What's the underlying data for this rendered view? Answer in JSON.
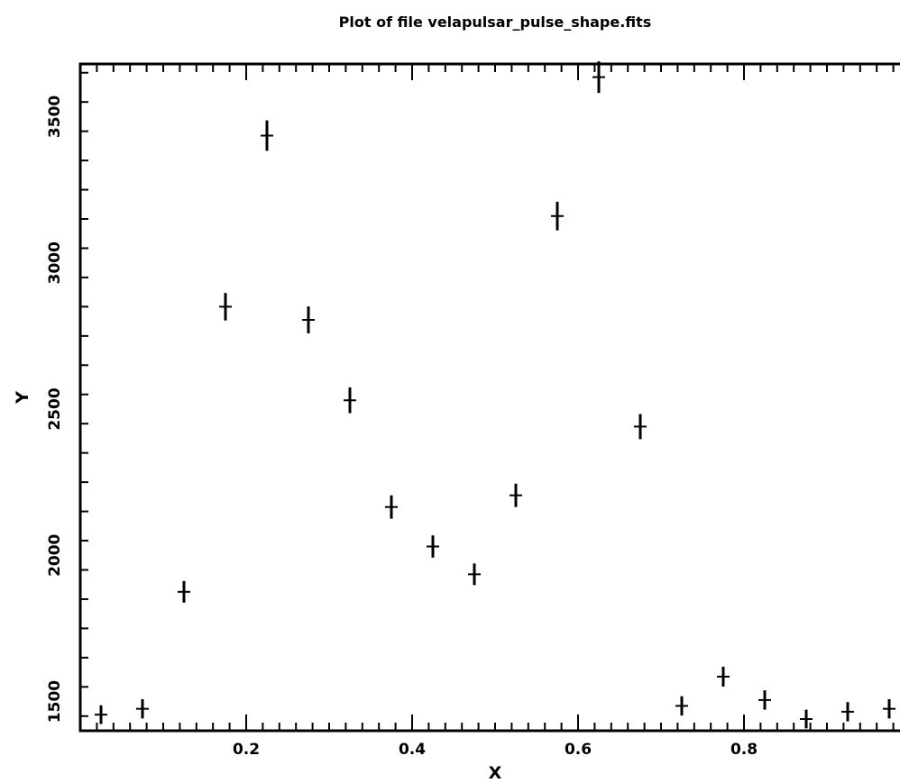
{
  "chart_data": {
    "type": "scatter",
    "title": "Plot of file velapulsar_pulse_shape.fits",
    "xlabel": "X",
    "ylabel": "Y",
    "xlim": [
      0.0,
      1.0
    ],
    "ylim": [
      1400,
      3680
    ],
    "x_ticks": [
      0.2,
      0.4,
      0.6,
      0.8
    ],
    "x_tick_labels": [
      "0.2",
      "0.4",
      "0.6",
      "0.8"
    ],
    "y_ticks": [
      1500,
      2000,
      2500,
      3000,
      3500
    ],
    "y_tick_labels": [
      "1500",
      "2000",
      "2500",
      "3000",
      "3500"
    ],
    "grid": false,
    "colors": {
      "background": "#ffffff",
      "ink": "#000000"
    },
    "series": [
      {
        "x": [
          0.025,
          0.075,
          0.125,
          0.175,
          0.225,
          0.275,
          0.325,
          0.375,
          0.425,
          0.475,
          0.525,
          0.575,
          0.625,
          0.675,
          0.725,
          0.775,
          0.825,
          0.875,
          0.925,
          0.975
        ],
        "y": [
          1455,
          1475,
          1875,
          2850,
          3435,
          2805,
          2530,
          2165,
          2030,
          1935,
          2205,
          3160,
          3635,
          2440,
          1485,
          1585,
          1505,
          1440,
          1465,
          1475
        ],
        "y_error": [
          32,
          33,
          37,
          47,
          52,
          46,
          44,
          40,
          38,
          37,
          40,
          49,
          54,
          43,
          33,
          34,
          33,
          32,
          33,
          33
        ]
      }
    ]
  }
}
